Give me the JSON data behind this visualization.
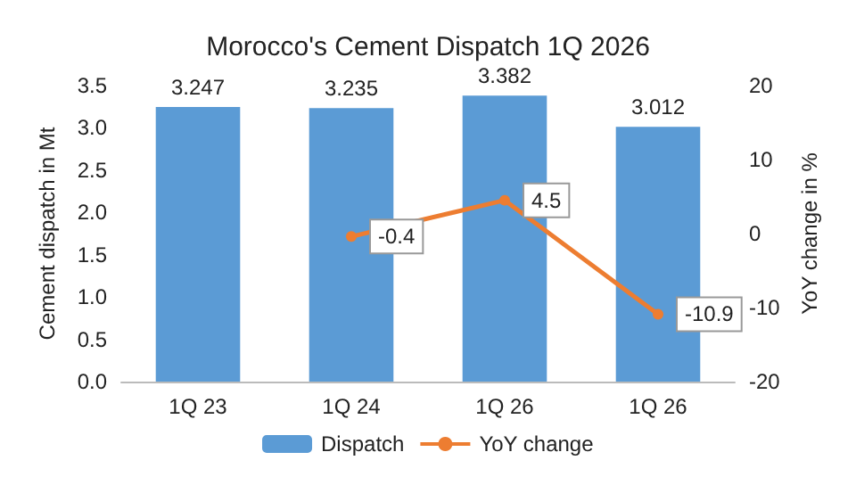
{
  "chart_data": {
    "type": "bar",
    "title": "Morocco's Cement Dispatch 1Q 2026",
    "ylabel": "Cement dispatch in Mt",
    "y2label": "YoY change in %",
    "categories": [
      "1Q 23",
      "1Q 24",
      "1Q 26",
      "1Q 26"
    ],
    "series": [
      {
        "name": "Dispatch",
        "color": "#5b9bd5",
        "values": [
          3.247,
          3.235,
          3.382,
          3.012
        ]
      },
      {
        "name": "YoY change",
        "type": "line",
        "axis": "y2",
        "color": "#ed7d31",
        "marker": "circle",
        "values": [
          null,
          -0.4,
          4.5,
          -10.9
        ]
      }
    ],
    "data_labels": true,
    "ylim": [
      0,
      3.5
    ],
    "yticks": [
      {
        "value": 0,
        "label": "0.0"
      },
      {
        "value": 0.5,
        "label": "0.5"
      },
      {
        "value": 1,
        "label": "1.0"
      },
      {
        "value": 1.5,
        "label": "1.5"
      },
      {
        "value": 2,
        "label": "2.0"
      },
      {
        "value": 2.5,
        "label": "2.5"
      },
      {
        "value": 3,
        "label": "3.0"
      },
      {
        "value": 3.5,
        "label": "3.5"
      }
    ],
    "y2lim": [
      -20,
      20
    ],
    "y2ticks": [
      -20,
      -10,
      0,
      10,
      20
    ],
    "legend": "bottom",
    "grid": false
  }
}
